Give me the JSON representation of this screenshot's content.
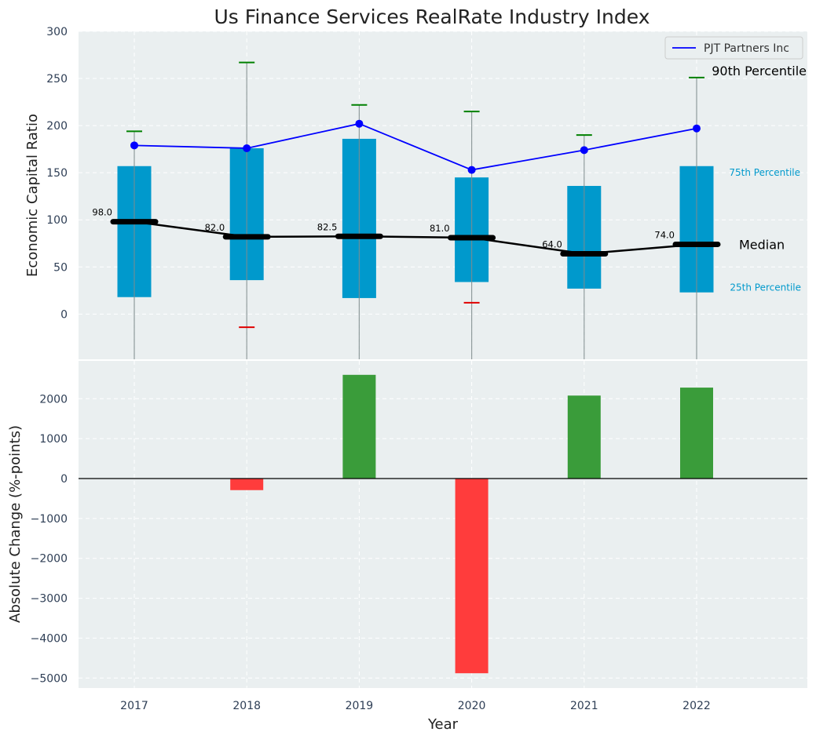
{
  "chart_data": [
    {
      "type": "box",
      "title": "Us Finance Services RealRate Industry Index",
      "ylabel": "Economic Capital Ratio",
      "ylim": [
        -48,
        300
      ],
      "yticks": [
        0,
        50,
        100,
        150,
        200,
        250,
        300
      ],
      "categories": [
        "2017",
        "2018",
        "2019",
        "2020",
        "2021",
        "2022"
      ],
      "percentile_25": [
        18,
        36,
        17,
        34,
        27,
        23
      ],
      "percentile_75": [
        157,
        176,
        186,
        145,
        136,
        157
      ],
      "percentile_90": [
        194,
        267,
        222,
        215,
        190,
        251
      ],
      "percentile_10": [
        null,
        -14,
        null,
        12,
        null,
        null
      ],
      "median": [
        98.0,
        82.0,
        82.5,
        81.0,
        64.0,
        74.0
      ],
      "median_labels": [
        "98.0",
        "82.0",
        "82.5",
        "81.0",
        "64.0",
        "74.0"
      ],
      "company": {
        "name": "PJT Partners Inc",
        "values": [
          179,
          176,
          202,
          153,
          174,
          197
        ],
        "color": "#0000ff"
      },
      "box_color": "#0099cc",
      "annotations": {
        "p90": "90th Percentile",
        "p75": "75th Percentile",
        "median": "Median",
        "p25": "25th Percentile"
      },
      "legend_position": "top-right",
      "grid": true
    },
    {
      "type": "bar",
      "xlabel": "Year",
      "ylabel": "Absolute Change (%-points)",
      "ylim": [
        -5250,
        2950
      ],
      "yticks": [
        -5000,
        -4000,
        -3000,
        -2000,
        -1000,
        0,
        1000,
        2000
      ],
      "ytick_labels": [
        "−5000",
        "−4000",
        "−3000",
        "−2000",
        "−1000",
        "0",
        "1000",
        "2000"
      ],
      "categories": [
        "2017",
        "2018",
        "2019",
        "2020",
        "2021",
        "2022"
      ],
      "values": [
        0,
        -290,
        2600,
        -4880,
        2080,
        2280
      ],
      "positive_color": "#3a9c3a",
      "negative_color": "#ff3c3c",
      "grid": true
    }
  ]
}
